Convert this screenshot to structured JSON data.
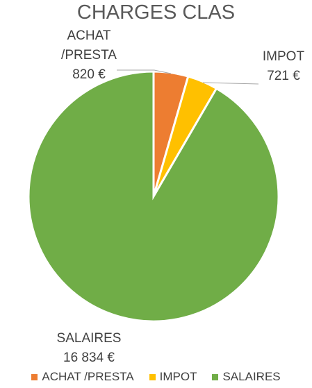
{
  "chart_data": {
    "type": "pie",
    "title": "CHARGES CLAS",
    "categories": [
      "ACHAT /PRESTA",
      "IMPOT",
      "SALAIRES"
    ],
    "values": [
      820,
      721,
      16834
    ],
    "value_labels": [
      "820 €",
      "721 €",
      "16 834 €"
    ],
    "colors": [
      "#ED7D31",
      "#FFC000",
      "#70AD47"
    ],
    "legend": "bottom"
  }
}
